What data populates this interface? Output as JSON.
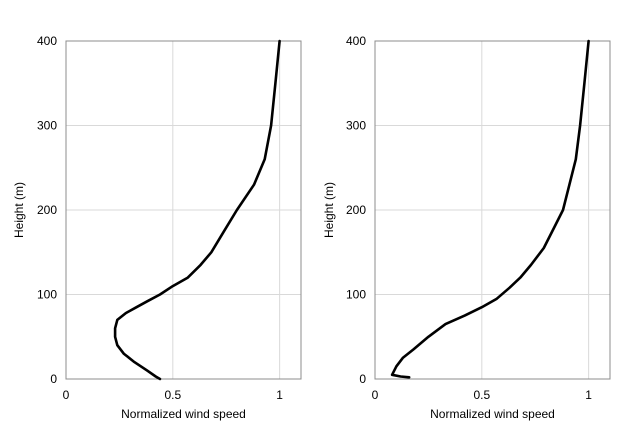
{
  "chart_data": [
    {
      "type": "line",
      "xlabel": "Normalized wind speed",
      "ylabel": "Height (m)",
      "xlim": [
        0,
        1.1
      ],
      "ylim": [
        0,
        400
      ],
      "xticks": [
        0,
        0.5,
        1
      ],
      "xtick_labels": [
        "0",
        "0.5",
        "1"
      ],
      "yticks": [
        0,
        100,
        200,
        300,
        400
      ],
      "ytick_labels": [
        "0",
        "100",
        "200",
        "300",
        "400"
      ],
      "grid": true,
      "series": [
        {
          "color": "#000000",
          "points": [
            [
              0.44,
              0
            ],
            [
              0.42,
              3
            ],
            [
              0.38,
              10
            ],
            [
              0.32,
              20
            ],
            [
              0.27,
              30
            ],
            [
              0.24,
              40
            ],
            [
              0.23,
              50
            ],
            [
              0.23,
              60
            ],
            [
              0.24,
              70
            ],
            [
              0.28,
              78
            ],
            [
              0.33,
              85
            ],
            [
              0.38,
              92
            ],
            [
              0.44,
              100
            ],
            [
              0.5,
              110
            ],
            [
              0.57,
              120
            ],
            [
              0.63,
              135
            ],
            [
              0.68,
              150
            ],
            [
              0.74,
              175
            ],
            [
              0.8,
              200
            ],
            [
              0.88,
              230
            ],
            [
              0.93,
              260
            ],
            [
              0.96,
              300
            ],
            [
              0.98,
              350
            ],
            [
              1.0,
              400
            ]
          ]
        }
      ]
    },
    {
      "type": "line",
      "xlabel": "Normalized wind speed",
      "ylabel": "Height (m)",
      "xlim": [
        0,
        1.1
      ],
      "ylim": [
        0,
        400
      ],
      "xticks": [
        0,
        0.5,
        1
      ],
      "xtick_labels": [
        "0",
        "0.5",
        "1"
      ],
      "yticks": [
        0,
        100,
        200,
        300,
        400
      ],
      "ytick_labels": [
        "0",
        "100",
        "200",
        "300",
        "400"
      ],
      "grid": true,
      "series": [
        {
          "color": "#000000",
          "points": [
            [
              0.16,
              2
            ],
            [
              0.12,
              3
            ],
            [
              0.08,
              5
            ],
            [
              0.1,
              15
            ],
            [
              0.13,
              25
            ],
            [
              0.18,
              35
            ],
            [
              0.25,
              50
            ],
            [
              0.33,
              65
            ],
            [
              0.42,
              75
            ],
            [
              0.5,
              85
            ],
            [
              0.57,
              95
            ],
            [
              0.63,
              108
            ],
            [
              0.68,
              120
            ],
            [
              0.73,
              135
            ],
            [
              0.79,
              155
            ],
            [
              0.84,
              180
            ],
            [
              0.88,
              200
            ],
            [
              0.91,
              230
            ],
            [
              0.94,
              260
            ],
            [
              0.96,
              300
            ],
            [
              0.98,
              350
            ],
            [
              1.0,
              400
            ]
          ]
        }
      ]
    }
  ]
}
